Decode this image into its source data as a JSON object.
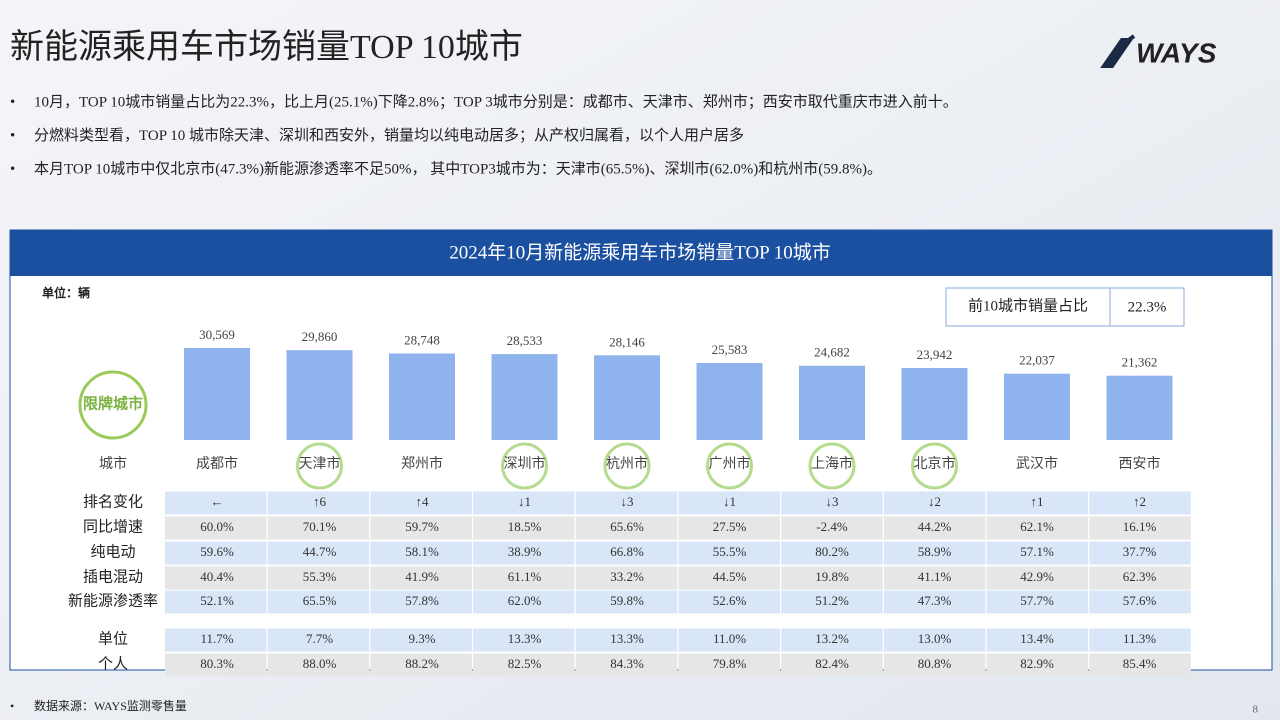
{
  "header": {
    "title": "新能源乘用车市场销量TOP 10城市",
    "logo": "WAYS"
  },
  "bullets": [
    "10月，TOP 10城市销量占比为22.3%，比上月(25.1%)下降2.8%；TOP 3城市分别是：成都市、天津市、郑州市；西安市取代重庆市进入前十。",
    "分燃料类型看，TOP 10 城市除天津、深圳和西安外，销量均以纯电动居多；从产权归属看，以个人用户居多",
    "本月TOP 10城市中仅北京市(47.3%)新能源渗透率不足50%， 其中TOP3城市为：天津市(65.5%)、深圳市(62.0%)和杭州市(59.8%)。"
  ],
  "chart_data": {
    "type": "bar",
    "title": "2024年10月新能源乘用车市场销量TOP 10城市",
    "unit_label": "单位：辆",
    "category_header": "城市",
    "badge": "限牌城市",
    "categories": [
      "成都市",
      "天津市",
      "郑州市",
      "深圳市",
      "杭州市",
      "广州市",
      "上海市",
      "北京市",
      "武汉市",
      "西安市"
    ],
    "values": [
      30569,
      29860,
      28748,
      28533,
      28146,
      25583,
      24682,
      23942,
      22037,
      21362
    ],
    "value_labels": [
      "30,569",
      "29,860",
      "28,748",
      "28,533",
      "28,146",
      "25,583",
      "24,682",
      "23,942",
      "22,037",
      "21,362"
    ],
    "color": "#8fb3ec",
    "restricted": [
      false,
      true,
      false,
      true,
      true,
      true,
      true,
      true,
      false,
      false
    ]
  },
  "share": {
    "label": "前10城市销量占比",
    "value": "22.3%"
  },
  "table": {
    "rows": [
      {
        "label": "排名变化",
        "cells": [
          "←",
          "↑6",
          "↑4",
          "↓1",
          "↓3",
          "↓1",
          "↓3",
          "↓2",
          "↑1",
          "↑2"
        ]
      },
      {
        "label": "同比增速",
        "cells": [
          "60.0%",
          "70.1%",
          "59.7%",
          "18.5%",
          "65.6%",
          "27.5%",
          "-2.4%",
          "44.2%",
          "62.1%",
          "16.1%"
        ]
      },
      {
        "label": "纯电动",
        "cells": [
          "59.6%",
          "44.7%",
          "58.1%",
          "38.9%",
          "66.8%",
          "55.5%",
          "80.2%",
          "58.9%",
          "57.1%",
          "37.7%"
        ]
      },
      {
        "label": "插电混动",
        "cells": [
          "40.4%",
          "55.3%",
          "41.9%",
          "61.1%",
          "33.2%",
          "44.5%",
          "19.8%",
          "41.1%",
          "42.9%",
          "62.3%"
        ]
      },
      {
        "label": "新能源渗透率",
        "cells": [
          "52.1%",
          "65.5%",
          "57.8%",
          "62.0%",
          "59.8%",
          "52.6%",
          "51.2%",
          "47.3%",
          "57.7%",
          "57.6%"
        ]
      },
      {
        "label": "单位",
        "cells": [
          "11.7%",
          "7.7%",
          "9.3%",
          "13.3%",
          "13.3%",
          "11.0%",
          "13.2%",
          "13.0%",
          "13.4%",
          "11.3%"
        ]
      },
      {
        "label": "个人",
        "cells": [
          "80.3%",
          "88.0%",
          "88.2%",
          "82.5%",
          "84.3%",
          "79.8%",
          "82.4%",
          "80.8%",
          "82.9%",
          "85.4%"
        ]
      }
    ]
  },
  "footer": {
    "source": "数据来源：WAYS监测零售量",
    "page": "8"
  }
}
